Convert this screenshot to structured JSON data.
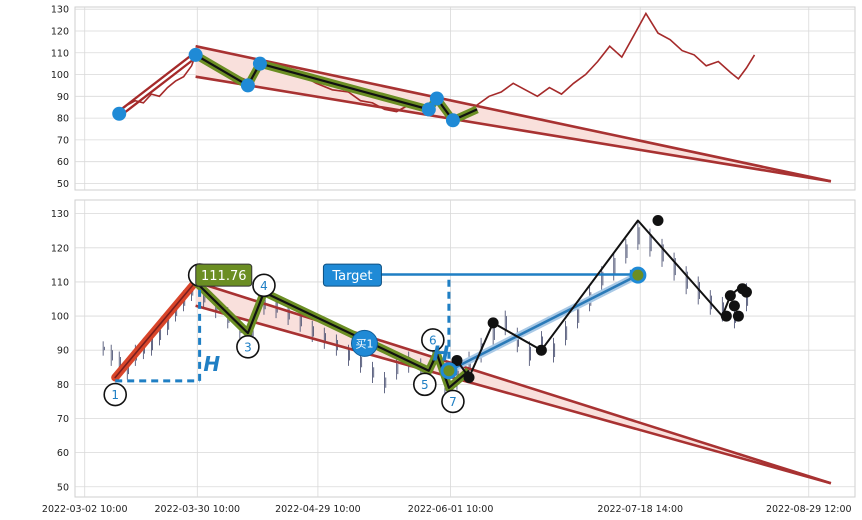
{
  "chart_data": [
    {
      "type": "line",
      "panel": "top",
      "yticks": [
        50,
        60,
        70,
        80,
        90,
        100,
        110,
        120,
        130
      ],
      "ylim": [
        47,
        131
      ],
      "grid": true,
      "colors": {
        "price": "#a52a2a",
        "wedge": "#a83232",
        "wedge_fill": "#f9e0dc",
        "pattern_outer": "#6b8e23",
        "pattern_inner": "#111111",
        "points": "#1f8ad6"
      },
      "price_series": [
        [
          "2022-03-11",
          83
        ],
        [
          "2022-03-13",
          86
        ],
        [
          "2022-03-15",
          88
        ],
        [
          "2022-03-17",
          87
        ],
        [
          "2022-03-19",
          91
        ],
        [
          "2022-03-21",
          90
        ],
        [
          "2022-03-23",
          94
        ],
        [
          "2022-03-25",
          97
        ],
        [
          "2022-03-27",
          99
        ],
        [
          "2022-03-29",
          104
        ],
        [
          "2022-03-30",
          109
        ],
        [
          "2022-04-02",
          106
        ],
        [
          "2022-04-05",
          103
        ],
        [
          "2022-04-08",
          100
        ],
        [
          "2022-04-11",
          98
        ],
        [
          "2022-04-13",
          95
        ],
        [
          "2022-04-15",
          103
        ],
        [
          "2022-04-17",
          106
        ],
        [
          "2022-04-20",
          103
        ],
        [
          "2022-04-23",
          101
        ],
        [
          "2022-04-26",
          99
        ],
        [
          "2022-04-29",
          96
        ],
        [
          "2022-05-03",
          93
        ],
        [
          "2022-05-07",
          92
        ],
        [
          "2022-05-10",
          88
        ],
        [
          "2022-05-13",
          87
        ],
        [
          "2022-05-16",
          84
        ],
        [
          "2022-05-19",
          83
        ],
        [
          "2022-05-22",
          86
        ],
        [
          "2022-05-25",
          85
        ],
        [
          "2022-05-27",
          84
        ],
        [
          "2022-05-29",
          89
        ],
        [
          "2022-05-31",
          82
        ],
        [
          "2022-06-02",
          79
        ],
        [
          "2022-06-05",
          81
        ],
        [
          "2022-06-08",
          86
        ],
        [
          "2022-06-11",
          90
        ],
        [
          "2022-06-14",
          92
        ],
        [
          "2022-06-17",
          96
        ],
        [
          "2022-06-20",
          93
        ],
        [
          "2022-06-23",
          90
        ],
        [
          "2022-06-26",
          94
        ],
        [
          "2022-06-29",
          91
        ],
        [
          "2022-07-02",
          96
        ],
        [
          "2022-07-05",
          100
        ],
        [
          "2022-07-08",
          106
        ],
        [
          "2022-07-11",
          113
        ],
        [
          "2022-07-14",
          108
        ],
        [
          "2022-07-17",
          118
        ],
        [
          "2022-07-20",
          128
        ],
        [
          "2022-07-23",
          119
        ],
        [
          "2022-07-26",
          116
        ],
        [
          "2022-07-29",
          111
        ],
        [
          "2022-08-01",
          109
        ],
        [
          "2022-08-04",
          104
        ],
        [
          "2022-08-07",
          106
        ],
        [
          "2022-08-10",
          101
        ],
        [
          "2022-08-12",
          98
        ],
        [
          "2022-08-14",
          103
        ],
        [
          "2022-08-16",
          109
        ]
      ],
      "wedge_upper": [
        [
          "2022-03-30",
          113
        ],
        [
          "2022-09-04",
          51
        ]
      ],
      "wedge_lower": [
        [
          "2022-03-30",
          99
        ],
        [
          "2022-09-04",
          51
        ]
      ],
      "lead_in": [
        [
          "2022-03-11",
          82
        ],
        [
          "2022-03-30",
          109
        ]
      ],
      "pattern_path": [
        [
          "2022-03-30",
          109
        ],
        [
          "2022-04-12",
          95
        ],
        [
          "2022-04-15",
          105
        ],
        [
          "2022-05-27",
          84
        ],
        [
          "2022-05-29",
          89
        ],
        [
          "2022-06-02",
          79
        ],
        [
          "2022-06-08",
          84
        ]
      ],
      "points": [
        [
          "2022-03-11",
          82
        ],
        [
          "2022-03-30",
          109
        ],
        [
          "2022-04-12",
          95
        ],
        [
          "2022-04-15",
          105
        ],
        [
          "2022-05-27",
          84
        ],
        [
          "2022-05-29",
          89
        ],
        [
          "2022-06-02",
          79
        ]
      ]
    },
    {
      "type": "candlestick",
      "panel": "bottom",
      "yticks": [
        50,
        60,
        70,
        80,
        90,
        100,
        110,
        120,
        130
      ],
      "ylim": [
        47,
        134
      ],
      "xticks": [
        "2022-03-02 10:00",
        "2022-03-30 10:00",
        "2022-04-29 10:00",
        "2022-06-01 10:00",
        "2022-07-18 14:00",
        "2022-08-29 12:00"
      ],
      "xlim": [
        "2022-02-28",
        "2022-09-10"
      ],
      "grid": true,
      "colors": {
        "candles": "#3d4468",
        "wedge": "#a83232",
        "wedge_fill": "#f9e0dc",
        "lead": "#d9452a",
        "pattern_outer": "#6b8e23",
        "pattern_inner": "#111111",
        "height_line": "#1f7fc4",
        "target_path": "#2a7ab8",
        "black_path": "#111111",
        "label_text": "#1f7fc4"
      },
      "candles": [
        [
          "2022-03-07",
          91,
          90
        ],
        [
          "2022-03-09",
          90,
          87
        ],
        [
          "2022-03-11",
          88,
          84
        ],
        [
          "2022-03-13",
          86,
          83
        ],
        [
          "2022-03-15",
          90,
          87
        ],
        [
          "2022-03-17",
          92,
          89
        ],
        [
          "2022-03-19",
          94,
          90
        ],
        [
          "2022-03-21",
          96,
          93
        ],
        [
          "2022-03-23",
          99,
          96
        ],
        [
          "2022-03-25",
          103,
          100
        ],
        [
          "2022-03-27",
          106,
          103
        ],
        [
          "2022-03-29",
          110,
          106
        ],
        [
          "2022-04-01",
          108,
          104
        ],
        [
          "2022-04-04",
          104,
          101
        ],
        [
          "2022-04-07",
          101,
          98
        ],
        [
          "2022-04-10",
          98,
          95
        ],
        [
          "2022-04-13",
          96,
          93
        ],
        [
          "2022-04-16",
          106,
          102
        ],
        [
          "2022-04-19",
          104,
          101
        ],
        [
          "2022-04-22",
          102,
          99
        ],
        [
          "2022-04-25",
          100,
          97
        ],
        [
          "2022-04-28",
          97,
          94
        ],
        [
          "2022-05-01",
          95,
          92
        ],
        [
          "2022-05-04",
          93,
          90
        ],
        [
          "2022-05-07",
          90,
          87
        ],
        [
          "2022-05-10",
          88,
          85
        ],
        [
          "2022-05-13",
          85,
          82
        ],
        [
          "2022-05-16",
          82,
          79
        ],
        [
          "2022-05-19",
          86,
          83
        ],
        [
          "2022-05-22",
          88,
          85
        ],
        [
          "2022-05-25",
          86,
          83
        ],
        [
          "2022-05-28",
          89,
          85
        ],
        [
          "2022-05-31",
          82,
          78
        ],
        [
          "2022-06-03",
          84,
          80
        ],
        [
          "2022-06-06",
          88,
          84
        ],
        [
          "2022-06-09",
          92,
          88
        ],
        [
          "2022-06-12",
          97,
          93
        ],
        [
          "2022-06-15",
          100,
          96
        ],
        [
          "2022-06-18",
          95,
          91
        ],
        [
          "2022-06-21",
          91,
          87
        ],
        [
          "2022-06-24",
          94,
          90
        ],
        [
          "2022-06-27",
          92,
          88
        ],
        [
          "2022-06-30",
          97,
          93
        ],
        [
          "2022-07-03",
          102,
          98
        ],
        [
          "2022-07-06",
          107,
          103
        ],
        [
          "2022-07-09",
          113,
          109
        ],
        [
          "2022-07-12",
          117,
          112
        ],
        [
          "2022-07-15",
          121,
          117
        ],
        [
          "2022-07-18",
          126,
          121
        ],
        [
          "2022-07-21",
          124,
          119
        ],
        [
          "2022-07-24",
          121,
          116
        ],
        [
          "2022-07-27",
          117,
          112
        ],
        [
          "2022-07-30",
          113,
          108
        ],
        [
          "2022-08-02",
          110,
          105
        ],
        [
          "2022-08-05",
          106,
          102
        ],
        [
          "2022-08-08",
          104,
          100
        ],
        [
          "2022-08-11",
          101,
          98
        ],
        [
          "2022-08-14",
          108,
          103
        ]
      ],
      "wedge_upper": [
        [
          "2022-03-30",
          110
        ],
        [
          "2022-09-04",
          51
        ]
      ],
      "wedge_lower": [
        [
          "2022-03-30",
          103
        ],
        [
          "2022-09-04",
          51
        ]
      ],
      "lead_in": [
        [
          "2022-03-10",
          82
        ],
        [
          "2022-03-30",
          110
        ]
      ],
      "pattern_path": [
        [
          "2022-03-30",
          110
        ],
        [
          "2022-04-12",
          95
        ],
        [
          "2022-04-16",
          107
        ],
        [
          "2022-05-27",
          84
        ],
        [
          "2022-05-29",
          89
        ],
        [
          "2022-06-01",
          79
        ],
        [
          "2022-06-06",
          84
        ]
      ],
      "height_lines": [
        [
          [
            "2022-03-10",
            81
          ],
          [
            "2022-03-31",
            81
          ]
        ],
        [
          [
            "2022-03-31",
            81
          ],
          [
            "2022-03-31",
            108
          ]
        ],
        [
          [
            "2022-06-01",
            84
          ],
          [
            "2022-06-01",
            111
          ]
        ]
      ],
      "target_arrow": [
        [
          "2022-06-01",
          111
        ],
        [
          "2022-07-18",
          111
        ]
      ],
      "target_path": [
        [
          "2022-06-01",
          84
        ],
        [
          "2022-07-18",
          112
        ]
      ],
      "black_path": [
        [
          "2022-06-01",
          84
        ],
        [
          "2022-06-03",
          87
        ],
        [
          "2022-06-06",
          82
        ],
        [
          "2022-06-12",
          98
        ],
        [
          "2022-06-24",
          90
        ],
        [
          "2022-07-18",
          128
        ],
        [
          "2022-08-08",
          100
        ],
        [
          "2022-08-10",
          106
        ],
        [
          "2022-08-12",
          108
        ]
      ],
      "black_points": [
        [
          "2022-06-03",
          87
        ],
        [
          "2022-06-06",
          82
        ],
        [
          "2022-06-12",
          98
        ],
        [
          "2022-06-24",
          90
        ],
        [
          "2022-07-23",
          128
        ],
        [
          "2022-08-09",
          100
        ],
        [
          "2022-08-10",
          106
        ],
        [
          "2022-08-11",
          103
        ],
        [
          "2022-08-12",
          100
        ],
        [
          "2022-08-13",
          108
        ],
        [
          "2022-08-14",
          107
        ]
      ],
      "pivots": [
        {
          "label": "1",
          "x": "2022-03-10",
          "y": 77
        },
        {
          "label": "",
          "x": "2022-03-31",
          "y": 112
        },
        {
          "label": "3",
          "x": "2022-04-12",
          "y": 91
        },
        {
          "label": "4",
          "x": "2022-04-16",
          "y": 109
        },
        {
          "label": "5",
          "x": "2022-05-26",
          "y": 80
        },
        {
          "label": "6",
          "x": "2022-05-28",
          "y": 93
        },
        {
          "label": "7",
          "x": "2022-06-02",
          "y": 75
        }
      ],
      "buy_point": {
        "label": "买1",
        "x": "2022-05-11",
        "y": 92
      },
      "price_tag": {
        "label": "111.76",
        "x": "2022-04-06",
        "y": 112
      },
      "target_tag": {
        "label": "Target",
        "x": "2022-05-08",
        "y": 112
      },
      "height_labels": [
        {
          "label": "H",
          "x": "2022-04-03",
          "y": 86
        },
        {
          "label": "H",
          "x": "2022-05-30",
          "y": 89
        }
      ],
      "pivot_markers_on_target": [
        [
          "2022-06-01",
          84
        ],
        [
          "2022-07-18",
          112
        ]
      ]
    }
  ]
}
